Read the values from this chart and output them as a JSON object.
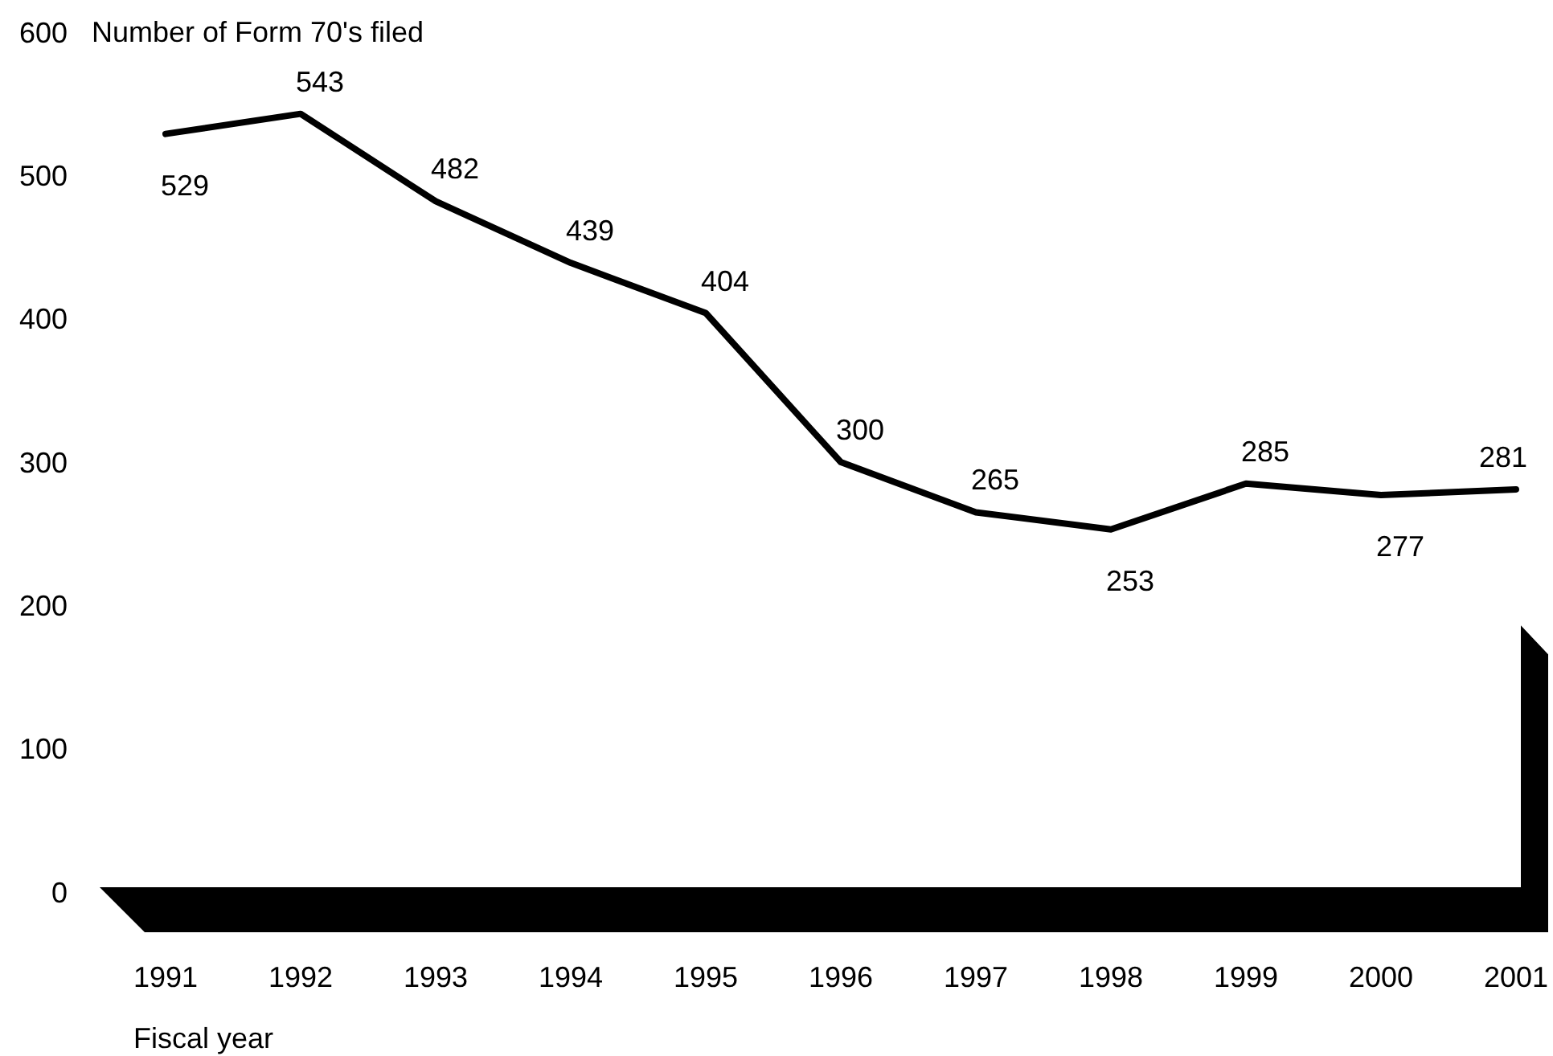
{
  "chart_data": {
    "type": "line",
    "ylabel": "Number of Form 70's filed",
    "xlabel": "Fiscal year",
    "categories": [
      "1991",
      "1992",
      "1993",
      "1994",
      "1995",
      "1996",
      "1997",
      "1998",
      "1999",
      "2000",
      "2001"
    ],
    "series": [
      {
        "color": "#000000",
        "values": [
          529,
          543,
          482,
          439,
          404,
          300,
          265,
          253,
          285,
          277,
          281
        ]
      }
    ],
    "ylim": [
      0,
      600
    ],
    "yticks": [
      0,
      100,
      200,
      300,
      400,
      500,
      600
    ],
    "data_labels": true,
    "grid": false,
    "marker": "none",
    "line_style": "solid"
  }
}
